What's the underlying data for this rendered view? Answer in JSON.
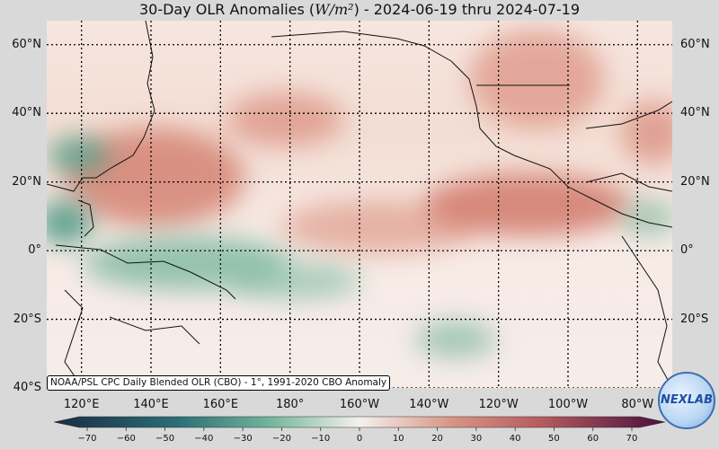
{
  "title": {
    "prefix": "30-Day OLR Anomalies (",
    "unit": "W/m²",
    "suffix": ") - 2024-06-19 thru 2024-07-19"
  },
  "map": {
    "lon_range": [
      110,
      290
    ],
    "lat_range": [
      -40,
      67
    ],
    "lat_labels": [
      "60°N",
      "40°N",
      "20°N",
      "0°",
      "20°S",
      "40°S"
    ],
    "lat_values": [
      60,
      40,
      20,
      0,
      -20,
      -40
    ],
    "lon_labels": [
      "120°E",
      "140°E",
      "160°E",
      "180°",
      "160°W",
      "140°W",
      "120°W",
      "100°W",
      "80°W"
    ],
    "lon_values": [
      120,
      140,
      160,
      180,
      200,
      220,
      240,
      260,
      280
    ]
  },
  "credit": "NOAA/PSL CPC Daily Blended OLR (CBO) - 1°, 1991-2020 CBO Anomaly",
  "colorbar": {
    "ticks": [
      "−70",
      "−60",
      "−50",
      "−40",
      "−30",
      "−20",
      "−10",
      "0",
      "10",
      "20",
      "30",
      "40",
      "50",
      "60",
      "70"
    ],
    "colors": {
      "neg_end": "#1b2a44",
      "neg_mid": "#2f8f7f",
      "zero": "#f5f0ee",
      "pos_mid": "#c96a55",
      "pos_end": "#4a0f3e"
    }
  },
  "logo": {
    "text": "NEXLAB"
  }
}
